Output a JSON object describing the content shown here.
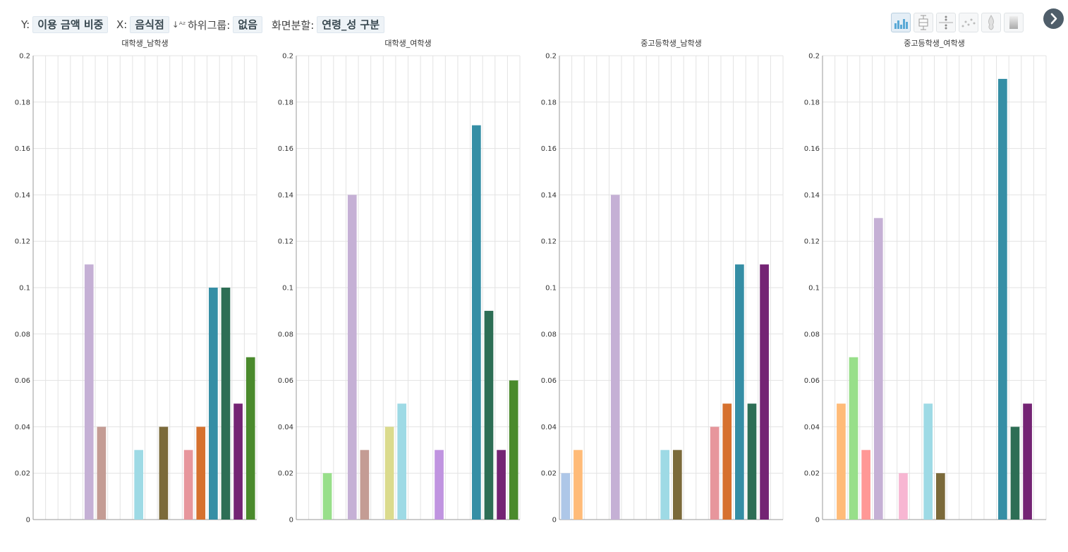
{
  "toolbar": {
    "y_label": "Y:",
    "y_value": "이용 금액 비중",
    "x_label": "X:",
    "x_value": "음식점",
    "subgroup_label": "하위그룹:",
    "subgroup_value": "없음",
    "split_label": "화면분할:",
    "split_value": "연령_성 구분",
    "view_buttons": [
      "bar-chart-icon",
      "box-plot-icon",
      "dot-strip-icon",
      "scatter-icon",
      "violin-icon",
      "density-icon"
    ],
    "next_icon": "chevron-right-icon"
  },
  "chart_data": [
    {
      "type": "bar",
      "title": "대학생_남학생",
      "ylim": [
        0,
        0.2
      ],
      "yticks": [
        "0",
        "0.02",
        "0.04",
        "0.06",
        "0.08",
        "0.1",
        "0.12",
        "0.14",
        "0.16",
        "0.18",
        "0.2"
      ],
      "grid": true,
      "categories": 18,
      "bars": [
        {
          "index": 5,
          "value": 0.11,
          "color": "#c5b0d5"
        },
        {
          "index": 6,
          "value": 0.04,
          "color": "#c49c94"
        },
        {
          "index": 9,
          "value": 0.03,
          "color": "#9edae5"
        },
        {
          "index": 11,
          "value": 0.04,
          "color": "#7b6a3a"
        },
        {
          "index": 13,
          "value": 0.03,
          "color": "#e7969c"
        },
        {
          "index": 14,
          "value": 0.04,
          "color": "#d6712e"
        },
        {
          "index": 15,
          "value": 0.1,
          "color": "#358ea5"
        },
        {
          "index": 16,
          "value": 0.1,
          "color": "#2d6e55"
        },
        {
          "index": 17,
          "value": 0.05,
          "color": "#742474"
        },
        {
          "index": 18,
          "value": 0.07,
          "color": "#4a8a2c"
        }
      ]
    },
    {
      "type": "bar",
      "title": "대학생_여학생",
      "ylim": [
        0,
        0.2
      ],
      "yticks": [
        "0",
        "0.02",
        "0.04",
        "0.06",
        "0.08",
        "0.1",
        "0.12",
        "0.14",
        "0.16",
        "0.18",
        "0.2"
      ],
      "grid": true,
      "categories": 18,
      "bars": [
        {
          "index": 3,
          "value": 0.02,
          "color": "#98df8a"
        },
        {
          "index": 5,
          "value": 0.14,
          "color": "#c5b0d5"
        },
        {
          "index": 6,
          "value": 0.03,
          "color": "#c49c94"
        },
        {
          "index": 8,
          "value": 0.04,
          "color": "#dbdb8d"
        },
        {
          "index": 9,
          "value": 0.05,
          "color": "#9edae5"
        },
        {
          "index": 12,
          "value": 0.03,
          "color": "#c094e0"
        },
        {
          "index": 15,
          "value": 0.17,
          "color": "#358ea5"
        },
        {
          "index": 16,
          "value": 0.09,
          "color": "#2d6e55"
        },
        {
          "index": 17,
          "value": 0.03,
          "color": "#742474"
        },
        {
          "index": 18,
          "value": 0.06,
          "color": "#4a8a2c"
        }
      ]
    },
    {
      "type": "bar",
      "title": "중고등학생_남학생",
      "ylim": [
        0,
        0.2
      ],
      "yticks": [
        "0",
        "0.02",
        "0.04",
        "0.06",
        "0.08",
        "0.1",
        "0.12",
        "0.14",
        "0.16",
        "0.18",
        "0.2"
      ],
      "grid": true,
      "categories": 18,
      "bars": [
        {
          "index": 1,
          "value": 0.02,
          "color": "#aec7e8"
        },
        {
          "index": 2,
          "value": 0.03,
          "color": "#ffbb78"
        },
        {
          "index": 5,
          "value": 0.14,
          "color": "#c5b0d5"
        },
        {
          "index": 9,
          "value": 0.03,
          "color": "#9edae5"
        },
        {
          "index": 10,
          "value": 0.03,
          "color": "#7b6a3a"
        },
        {
          "index": 13,
          "value": 0.04,
          "color": "#e7969c"
        },
        {
          "index": 14,
          "value": 0.05,
          "color": "#d6712e"
        },
        {
          "index": 15,
          "value": 0.11,
          "color": "#358ea5"
        },
        {
          "index": 16,
          "value": 0.05,
          "color": "#2d6e55"
        },
        {
          "index": 17,
          "value": 0.11,
          "color": "#742474"
        }
      ]
    },
    {
      "type": "bar",
      "title": "중고등학생_여학생",
      "ylim": [
        0,
        0.2
      ],
      "yticks": [
        "0",
        "0.02",
        "0.04",
        "0.06",
        "0.08",
        "0.1",
        "0.12",
        "0.14",
        "0.16",
        "0.18",
        "0.2"
      ],
      "grid": true,
      "categories": 18,
      "bars": [
        {
          "index": 2,
          "value": 0.05,
          "color": "#ffbb78"
        },
        {
          "index": 3,
          "value": 0.07,
          "color": "#98df8a"
        },
        {
          "index": 4,
          "value": 0.03,
          "color": "#ff9896"
        },
        {
          "index": 5,
          "value": 0.13,
          "color": "#c5b0d5"
        },
        {
          "index": 7,
          "value": 0.02,
          "color": "#f7b6d2"
        },
        {
          "index": 9,
          "value": 0.05,
          "color": "#9edae5"
        },
        {
          "index": 10,
          "value": 0.02,
          "color": "#7b6a3a"
        },
        {
          "index": 15,
          "value": 0.19,
          "color": "#358ea5"
        },
        {
          "index": 16,
          "value": 0.04,
          "color": "#2d6e55"
        },
        {
          "index": 17,
          "value": 0.05,
          "color": "#742474"
        }
      ]
    }
  ]
}
